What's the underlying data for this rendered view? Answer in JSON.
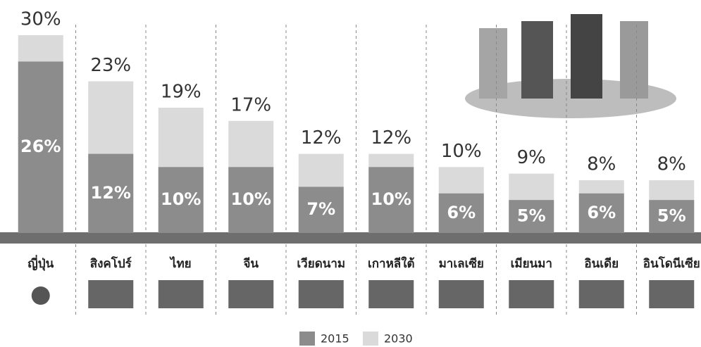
{
  "chart_data": {
    "type": "bar",
    "categories": [
      "ญี่ปุ่น",
      "สิงคโปร์",
      "ไทย",
      "จีน",
      "เวียดนาม",
      "เกาหลีใต้",
      "มาเลเซีย",
      "เมียนมา",
      "อินเดีย",
      "อินโดนีเซีย"
    ],
    "series": [
      {
        "name": "2030",
        "color": "#dadada",
        "values": [
          30,
          23,
          19,
          17,
          12,
          12,
          10,
          9,
          8,
          8
        ],
        "value_labels": [
          "30%",
          "23%",
          "19%",
          "17%",
          "12%",
          "12%",
          "10%",
          "9%",
          "8%",
          "8%"
        ]
      },
      {
        "name": "2015",
        "color": "#8c8c8c",
        "values": [
          26,
          12,
          10,
          10,
          7,
          10,
          6,
          5,
          6,
          5
        ],
        "value_labels": [
          "26%",
          "12%",
          "10%",
          "10%",
          "7%",
          "10%",
          "6%",
          "5%",
          "6%",
          "5%"
        ]
      }
    ],
    "ylim": [
      0,
      30
    ]
  }
}
